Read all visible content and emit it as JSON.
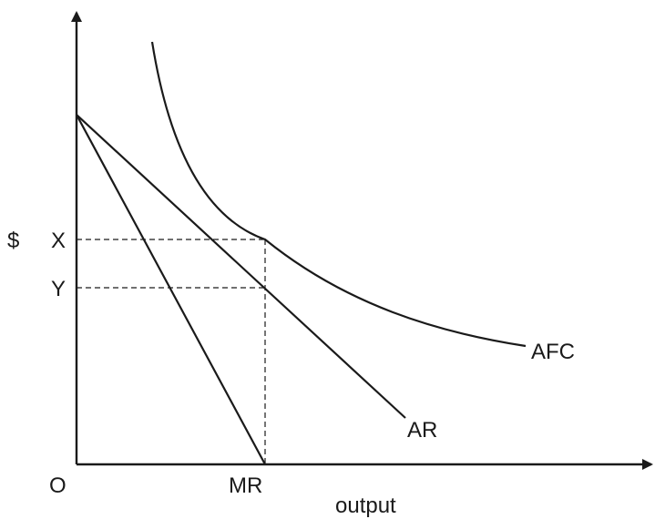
{
  "labels": {
    "y_axis": "$",
    "origin": "O",
    "x_axis": "output",
    "price_x": "X",
    "price_y": "Y",
    "afc": "AFC",
    "ar": "AR",
    "mr": "MR"
  },
  "colors": {
    "ink": "#1a1a1a",
    "background": "#ffffff"
  }
}
